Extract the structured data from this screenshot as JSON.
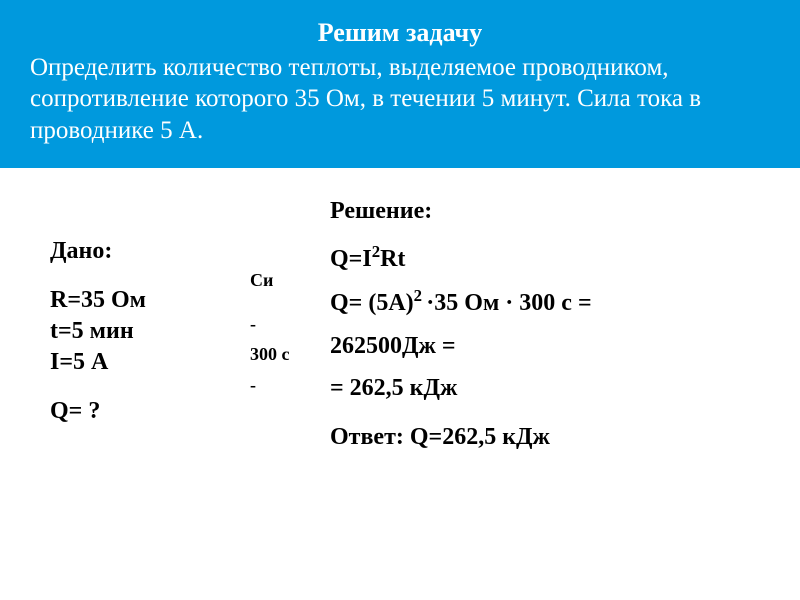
{
  "header": {
    "title": "Решим задачу",
    "text": "Определить количество теплоты, выделяемое проводником, сопротивление которого 35 Ом, в течении 5 минут. Сила тока в проводнике 5 А."
  },
  "given": {
    "title": "Дано:",
    "R": "R=35 Ом",
    "t": "t=5 мин",
    "I": "I=5 А",
    "Q": "Q= ?"
  },
  "si": {
    "title": "Си",
    "R": "-",
    "t": "300 с",
    "I": "-"
  },
  "solution": {
    "title": "Решение:",
    "formula_label": "Q=I",
    "formula_exp": "2",
    "formula_tail": "Rt",
    "calc_head": "Q= (5А)",
    "calc_exp": "2 ",
    "calc_mid": "·",
    "calc_tail1": "35 Ом · 300 с =",
    "calc_tail2": "262500Дж =",
    "calc_tail3": "= 262,5 кДж",
    "answer": "Ответ: Q=262,5 кДж"
  },
  "colors": {
    "header_bg": "#0099dd",
    "header_text": "#ffffff",
    "body_text": "#000000",
    "page_bg": "#ffffff"
  }
}
